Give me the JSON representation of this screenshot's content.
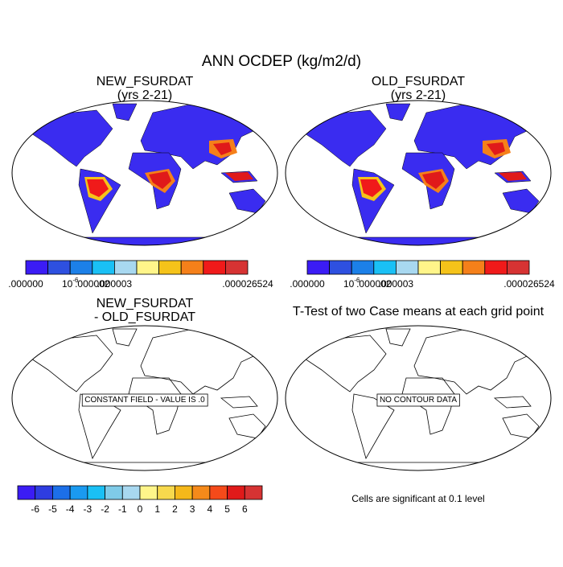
{
  "title": "ANN OCDEP (kg/m2/d)",
  "panels": [
    {
      "title": [
        "NEW_FSURDAT",
        "(yrs 2-21)"
      ],
      "filled": true,
      "colorbar": {
        "colors": [
          "#3b1cf5",
          "#2e50e0",
          "#1c80e8",
          "#1ac0f5",
          "#a8d8f0",
          "#fff58a",
          "#f5c31a",
          "#f5801a",
          "#f01a1a",
          "#d63333"
        ],
        "labels": [
          ".000000",
          null,
          {
            "text": "10",
            "sup": "-6"
          },
          ".000002",
          ".000003",
          null,
          null,
          null,
          null,
          null,
          ".000026524"
        ]
      }
    },
    {
      "title": [
        "OLD_FSURDAT",
        "(yrs 2-21)"
      ],
      "filled": true,
      "colorbar": {
        "colors": [
          "#3b1cf5",
          "#2e50e0",
          "#1c80e8",
          "#1ac0f5",
          "#a8d8f0",
          "#fff58a",
          "#f5c31a",
          "#f5801a",
          "#f01a1a",
          "#d63333"
        ],
        "labels": [
          ".000000",
          null,
          {
            "text": "10",
            "sup": "-6"
          },
          ".000002",
          ".000003",
          null,
          null,
          null,
          null,
          null,
          ".000026524"
        ]
      }
    },
    {
      "title": [
        "NEW_FSURDAT",
        "- OLD_FSURDAT"
      ],
      "filled": false,
      "note": "CONSTANT FIELD - VALUE IS .0",
      "colorbar": {
        "colors": [
          "#3b1cf5",
          "#2e3de0",
          "#1c6fe8",
          "#1a9af0",
          "#1ac0f5",
          "#7fcbe8",
          "#a8d8f0",
          "#fff58a",
          "#f7d94d",
          "#f5b81a",
          "#f58a1a",
          "#f54a1a",
          "#e01a1a",
          "#d63333"
        ],
        "labels": [
          null,
          -6,
          -5,
          -4,
          -3,
          -2,
          -1,
          0,
          1,
          2,
          3,
          4,
          5,
          6,
          null
        ]
      }
    },
    {
      "title": [
        "T-Test of two Case means at each grid point"
      ],
      "filled": false,
      "note": "NO CONTOUR DATA",
      "footnote": "Cells are significant at 0.1 level"
    }
  ]
}
